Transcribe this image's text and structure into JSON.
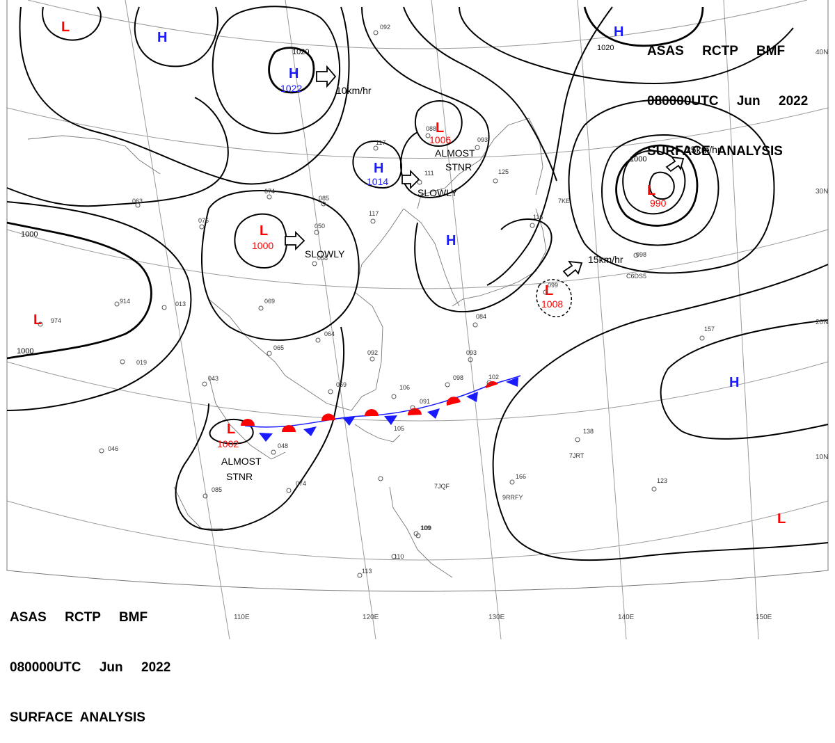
{
  "title": {
    "line1": "ASAS     RCTP     BMF",
    "line2": "080000UTC     Jun     2022",
    "line3": "SURFACE  ANALYSIS"
  },
  "graticule": {
    "lat_labels": [
      "40N",
      "30N",
      "20N",
      "10N"
    ],
    "lon_labels": [
      "110E",
      "120E",
      "130E",
      "140E",
      "150E"
    ]
  },
  "systems": [
    {
      "type": "L",
      "pressure": ""
    },
    {
      "type": "H",
      "pressure": ""
    },
    {
      "type": "H",
      "pressure": "1022"
    },
    {
      "type": "L",
      "pressure": "1006"
    },
    {
      "type": "H",
      "pressure": "1014"
    },
    {
      "type": "L",
      "pressure": "1000"
    },
    {
      "type": "H",
      "pressure": ""
    },
    {
      "type": "L",
      "pressure": "990"
    },
    {
      "type": "L",
      "pressure": "1008"
    },
    {
      "type": "L",
      "pressure": ""
    },
    {
      "type": "H",
      "pressure": ""
    },
    {
      "type": "L",
      "pressure": "1002"
    },
    {
      "type": "H",
      "pressure": ""
    },
    {
      "type": "L",
      "pressure": ""
    }
  ],
  "motion": {
    "m1": "10km/hr",
    "m2": "SLOWLY",
    "m3": "SLOWLY",
    "m4": "25km/hr",
    "m5": "15km/hr",
    "m6a": "ALMOST",
    "m6b": "STNR",
    "m7a": "ALMOST",
    "m7b": "STNR"
  },
  "isobar_labels": [
    "1020",
    "1020",
    "1000",
    "1000",
    "1000"
  ],
  "stations": [
    "092",
    "088",
    "093",
    "117",
    "111",
    "125",
    "085",
    "117",
    "063",
    "074",
    "076",
    "050",
    "058",
    "069",
    "064",
    "065",
    "043",
    "059",
    "092",
    "106",
    "091",
    "098",
    "093",
    "102",
    "157",
    "138",
    "166",
    "123",
    "105",
    "109",
    "110",
    "113",
    "048",
    "085",
    "074",
    "046",
    "019",
    "914",
    "013",
    "974",
    "099",
    "084",
    "116",
    "098",
    "109"
  ],
  "station_ids": [
    "7KE",
    "C6DS5",
    "7JRT",
    "7JQF",
    "9RRFY"
  ],
  "colors": {
    "high": "#1a1aff",
    "low": "#ff0000",
    "warm_front": "#ff0000",
    "cold_front": "#1a1aff"
  }
}
